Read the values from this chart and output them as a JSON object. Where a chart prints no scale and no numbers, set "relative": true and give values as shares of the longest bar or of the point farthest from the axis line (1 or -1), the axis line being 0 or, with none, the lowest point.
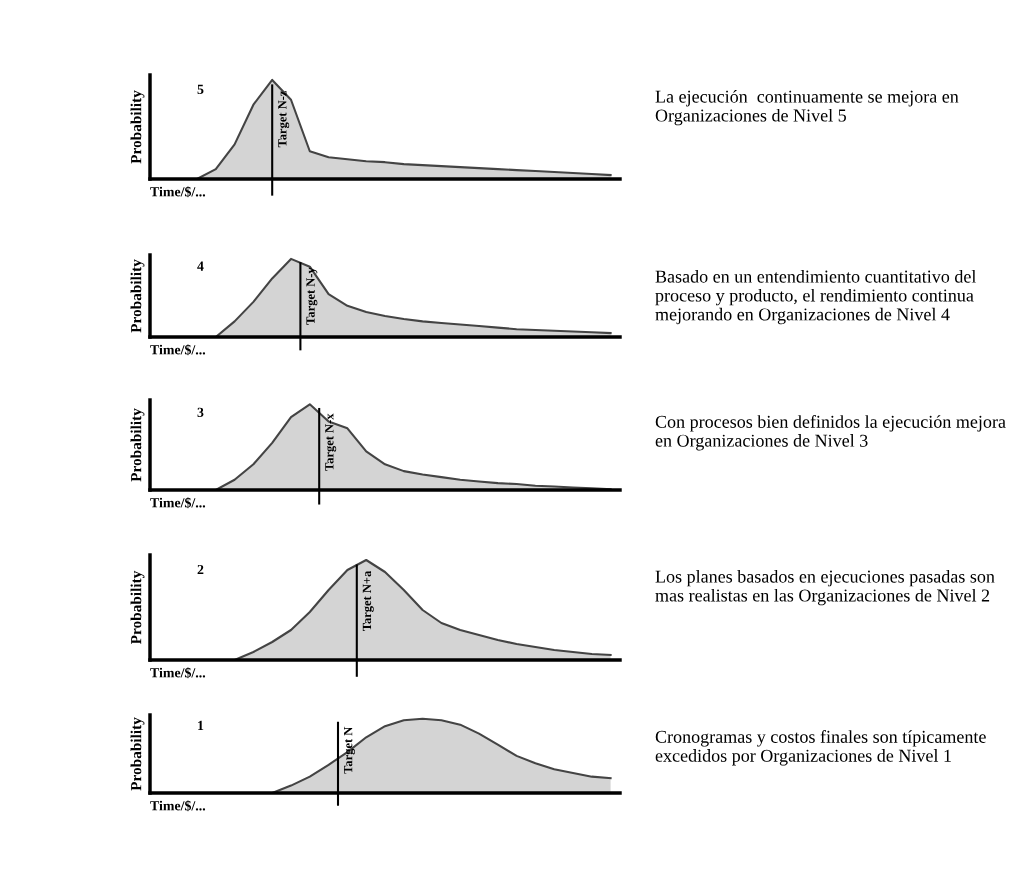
{
  "chart_data": [
    {
      "type": "area",
      "title": "5",
      "ylabel": "Probability",
      "xlabel": "Time/$/...",
      "relative": true,
      "categories": [
        null,
        null,
        null,
        null,
        null,
        null,
        null,
        null,
        null,
        null,
        null,
        null,
        null,
        null,
        null,
        null,
        null,
        null,
        null,
        null,
        null,
        null,
        null,
        null,
        null
      ],
      "series": [
        {
          "color": "#d4d4d4",
          "values": [
            0,
            0,
            0,
            0.1,
            0.35,
            0.75,
            1.0,
            0.8,
            0.28,
            0.22,
            0.2,
            0.18,
            0.17,
            0.15,
            0.14,
            0.13,
            0.12,
            0.11,
            0.1,
            0.09,
            0.08,
            0.07,
            0.06,
            0.05,
            0.04
          ]
        }
      ],
      "annotations": [
        "La ejecución  continuamente se mejora en Organizaciones de Nivel 5",
        "Target N-z"
      ]
    },
    {
      "type": "area",
      "title": "4",
      "ylabel": "Probability",
      "xlabel": "Time/$/...",
      "relative": true,
      "categories": [
        null,
        null,
        null,
        null,
        null,
        null,
        null,
        null,
        null,
        null,
        null,
        null,
        null,
        null,
        null,
        null,
        null,
        null,
        null,
        null,
        null,
        null,
        null,
        null,
        null
      ],
      "series": [
        {
          "color": "#d4d4d4",
          "values": [
            0,
            0,
            0,
            0,
            0.2,
            0.45,
            0.75,
            1.0,
            0.9,
            0.55,
            0.4,
            0.32,
            0.27,
            0.23,
            0.2,
            0.18,
            0.16,
            0.14,
            0.12,
            0.1,
            0.09,
            0.08,
            0.07,
            0.06,
            0.05
          ]
        }
      ],
      "annotations": [
        "Basado en un entendimiento cuantitativo del proceso y producto, el rendimiento continua mejorando en Organizaciones de Nivel 4",
        "Target N-y"
      ]
    },
    {
      "type": "area",
      "title": "3",
      "ylabel": "Probability",
      "xlabel": "Time/$/...",
      "relative": true,
      "categories": [
        null,
        null,
        null,
        null,
        null,
        null,
        null,
        null,
        null,
        null,
        null,
        null,
        null,
        null,
        null,
        null,
        null,
        null,
        null,
        null,
        null,
        null,
        null,
        null,
        null
      ],
      "series": [
        {
          "color": "#d4d4d4",
          "values": [
            0,
            0,
            0,
            0,
            0.12,
            0.3,
            0.55,
            0.85,
            1.0,
            0.8,
            0.72,
            0.45,
            0.3,
            0.22,
            0.18,
            0.15,
            0.12,
            0.1,
            0.08,
            0.07,
            0.05,
            0.04,
            0.03,
            0.02,
            0.01
          ]
        }
      ],
      "annotations": [
        "Con procesos bien definidos la ejecución mejora en Organizaciones de Nivel 3",
        "Target N-x"
      ]
    },
    {
      "type": "area",
      "title": "2",
      "ylabel": "Probability",
      "xlabel": "Time/$/...",
      "relative": true,
      "categories": [
        null,
        null,
        null,
        null,
        null,
        null,
        null,
        null,
        null,
        null,
        null,
        null,
        null,
        null,
        null,
        null,
        null,
        null,
        null,
        null,
        null,
        null,
        null,
        null,
        null
      ],
      "series": [
        {
          "color": "#d4d4d4",
          "values": [
            0,
            0,
            0,
            0,
            0,
            0.08,
            0.18,
            0.3,
            0.48,
            0.7,
            0.9,
            1.0,
            0.88,
            0.7,
            0.5,
            0.37,
            0.3,
            0.25,
            0.2,
            0.16,
            0.13,
            0.1,
            0.08,
            0.06,
            0.05
          ]
        }
      ],
      "annotations": [
        "Los planes basados en ejecuciones pasadas son mas realistas en las Organizaciones de Nivel 2",
        "Target N+a"
      ]
    },
    {
      "type": "area",
      "title": "1",
      "ylabel": "Probability",
      "xlabel": "Time/$/...",
      "relative": true,
      "categories": [
        null,
        null,
        null,
        null,
        null,
        null,
        null,
        null,
        null,
        null,
        null,
        null,
        null,
        null,
        null,
        null,
        null,
        null,
        null,
        null,
        null,
        null,
        null,
        null,
        null
      ],
      "series": [
        {
          "color": "#d4d4d4",
          "values": [
            0,
            0,
            0,
            0,
            0,
            0,
            0,
            0.1,
            0.22,
            0.38,
            0.55,
            0.75,
            0.9,
            0.98,
            1.0,
            0.98,
            0.92,
            0.8,
            0.65,
            0.5,
            0.4,
            0.32,
            0.27,
            0.22,
            0.2
          ]
        }
      ],
      "annotations": [
        "Cronogramas y costos finales son típicamente excedidos por Organizaciones de Nivel 1",
        "Target N"
      ]
    }
  ]
}
